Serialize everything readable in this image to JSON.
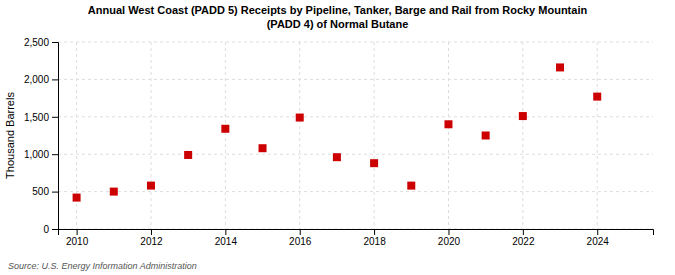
{
  "chart_data": {
    "type": "scatter",
    "title": "Annual West Coast (PADD 5) Receipts by Pipeline, Tanker, Barge and Rail from Rocky Mountain\n(PADD 4) of Normal Butane",
    "y_label": "Thousand Barrels",
    "annotations": [
      "Source: U.S. Energy Information Administration"
    ],
    "x": [
      2010,
      2011,
      2012,
      2013,
      2014,
      2015,
      2016,
      2017,
      2018,
      2019,
      2020,
      2021,
      2022,
      2023,
      2024
    ],
    "values": [
      420,
      500,
      580,
      990,
      1340,
      1080,
      1490,
      960,
      880,
      580,
      1400,
      1250,
      1510,
      2160,
      1770
    ],
    "color": "#cc0000",
    "marker": "square",
    "xlim": [
      2009.5,
      2025.5
    ],
    "ylim": [
      0,
      2500
    ],
    "xticks": [
      2010,
      2012,
      2014,
      2016,
      2018,
      2020,
      2022,
      2024
    ],
    "yticks": [
      0,
      500,
      {
        "value": 1000,
        "label": "1,000"
      },
      {
        "value": 1500,
        "label": "1,500"
      },
      {
        "value": 2000,
        "label": "2,000"
      },
      {
        "value": 2500,
        "label": "2,500"
      }
    ],
    "grid": true
  }
}
